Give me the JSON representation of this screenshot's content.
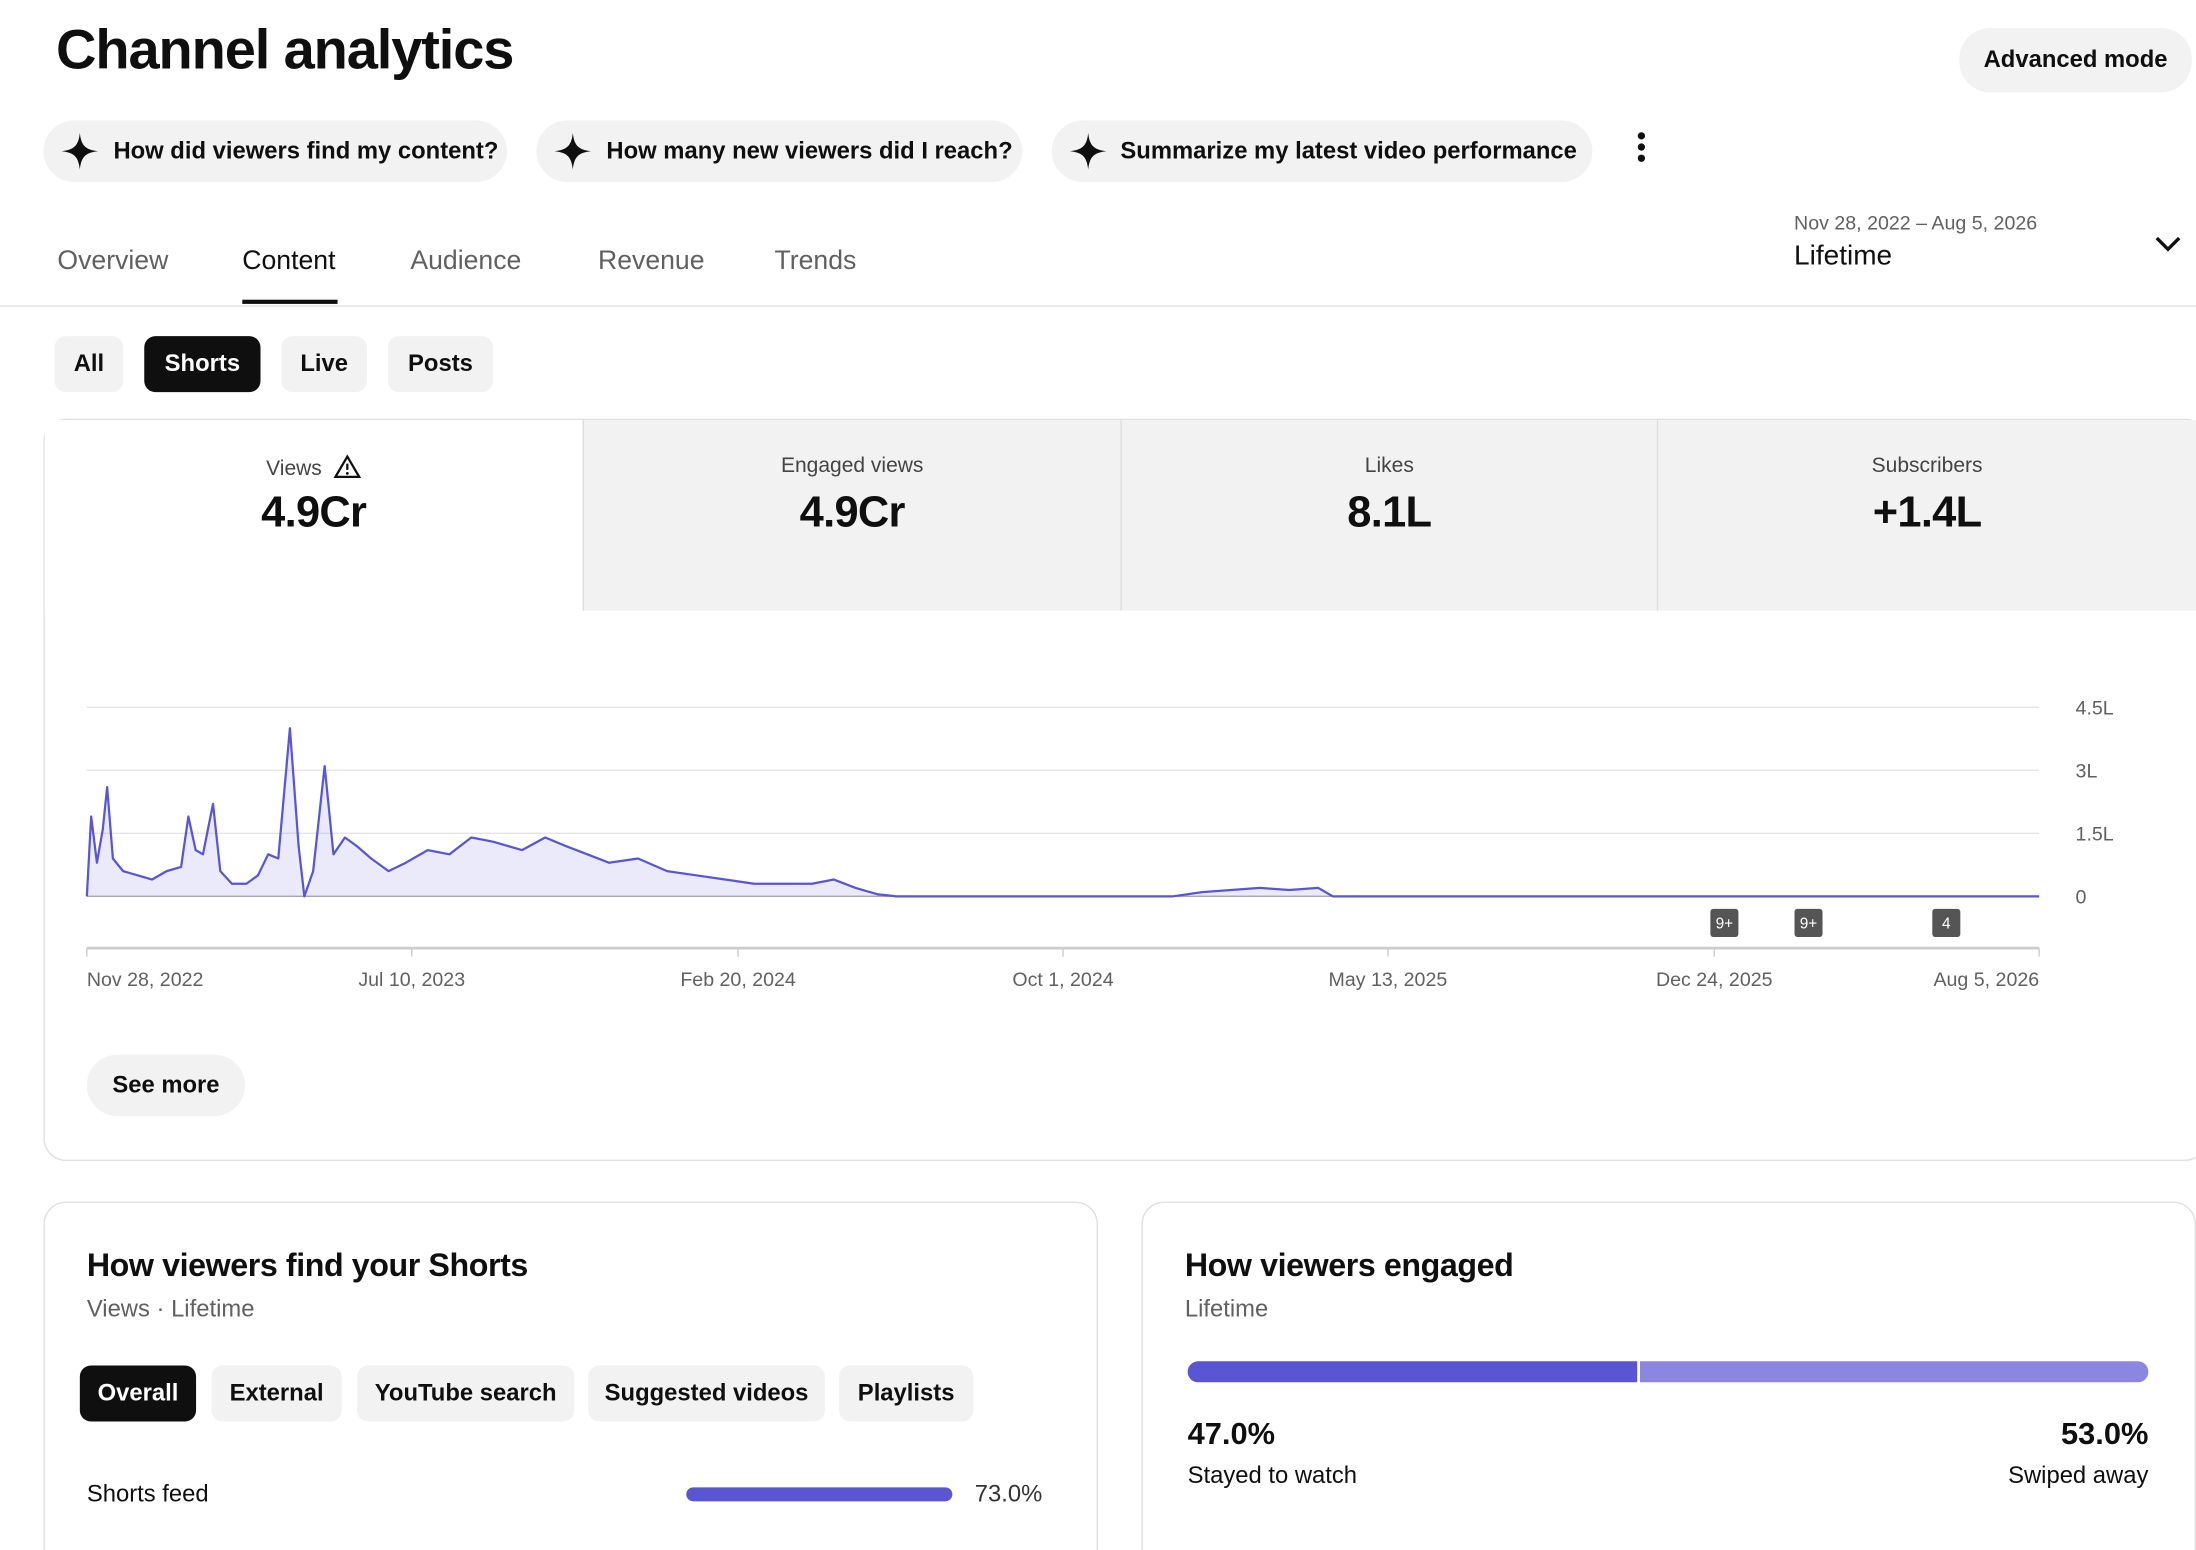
{
  "header": {
    "title": "Channel analytics",
    "advanced": "Advanced mode"
  },
  "prompts": [
    "How did viewers find my content?",
    "How many new viewers did I reach?",
    "Summarize my latest video performance"
  ],
  "tabs": [
    "Overview",
    "Content",
    "Audience",
    "Revenue",
    "Trends"
  ],
  "date_range": {
    "range": "Nov 28, 2022 – Aug 5, 2026",
    "label": "Lifetime"
  },
  "filters": [
    "All",
    "Shorts",
    "Live",
    "Posts"
  ],
  "metrics": [
    {
      "label": "Views",
      "value": "4.9Cr"
    },
    {
      "label": "Engaged views",
      "value": "4.9Cr"
    },
    {
      "label": "Likes",
      "value": "8.1L"
    },
    {
      "label": "Subscribers",
      "value": "+1.4L"
    }
  ],
  "chart_data": {
    "type": "line",
    "x": [
      "2022-11-28",
      "2022-12-01",
      "2022-12-05",
      "2022-12-09",
      "2022-12-12",
      "2022-12-16",
      "2022-12-23",
      "2023-01-02",
      "2023-01-12",
      "2023-01-22",
      "2023-02-01",
      "2023-02-06",
      "2023-02-11",
      "2023-02-16",
      "2023-02-23",
      "2023-02-28",
      "2023-03-08",
      "2023-03-18",
      "2023-03-26",
      "2023-04-02",
      "2023-04-09",
      "2023-04-17",
      "2023-04-23",
      "2023-04-27",
      "2023-05-03",
      "2023-05-11",
      "2023-05-17",
      "2023-05-25",
      "2023-06-02",
      "2023-06-12",
      "2023-06-24",
      "2023-07-06",
      "2023-07-21",
      "2023-08-05",
      "2023-08-20",
      "2023-09-04",
      "2023-09-24",
      "2023-10-10",
      "2023-10-24",
      "2023-11-08",
      "2023-11-23",
      "2023-12-13",
      "2024-01-02",
      "2024-01-22",
      "2024-02-11",
      "2024-03-02",
      "2024-03-22",
      "2024-04-11",
      "2024-04-26",
      "2024-05-11",
      "2024-05-26",
      "2024-06-08",
      "2024-12-16",
      "2025-01-05",
      "2025-01-25",
      "2025-02-14",
      "2025-03-06",
      "2025-03-26",
      "2025-04-05",
      "2026-08-05"
    ],
    "series": [
      {
        "name": "Views",
        "color": "#5a55d2",
        "values": [
          0,
          1.9,
          0.8,
          1.6,
          2.6,
          0.9,
          0.6,
          0.5,
          0.4,
          0.6,
          0.7,
          1.9,
          1.1,
          1.0,
          2.2,
          0.6,
          0.3,
          0.3,
          0.5,
          1.0,
          0.9,
          4.0,
          1.2,
          0,
          0.6,
          3.1,
          1.0,
          1.4,
          1.2,
          0.9,
          0.6,
          0.8,
          1.1,
          1.0,
          1.4,
          1.3,
          1.1,
          1.4,
          1.2,
          1.0,
          0.8,
          0.9,
          0.6,
          0.5,
          0.4,
          0.3,
          0.3,
          0.3,
          0.4,
          0.2,
          0.05,
          0,
          0,
          0.1,
          0.15,
          0.2,
          0.15,
          0.2,
          0,
          0
        ]
      }
    ],
    "xlim": [
      "2022-11-28",
      "2026-08-05"
    ],
    "xticks": [
      "Nov 28, 2022",
      "Jul 10, 2023",
      "Feb 20, 2024",
      "Oct 1, 2024",
      "May 13, 2025",
      "Dec 24, 2025",
      "Aug 5, 2026"
    ],
    "ylim": [
      0,
      4.5
    ],
    "yticks": [
      0,
      {
        "value": 1.5,
        "label": "1.5L"
      },
      {
        "value": 3,
        "label": "3L"
      },
      {
        "value": 4.5,
        "label": "4.5L"
      }
    ],
    "grid": true,
    "events": [
      {
        "x": "2025-12-31",
        "label": "9+"
      },
      {
        "x": "2026-02-27",
        "label": "9+"
      },
      {
        "x": "2026-06-02",
        "label": "4"
      }
    ]
  },
  "see_more": "See more",
  "traffic": {
    "title": "How viewers find your Shorts",
    "subtitle": "Views · Lifetime",
    "filters": [
      "Overall",
      "External",
      "YouTube search",
      "Suggested videos",
      "Playlists"
    ],
    "rows": [
      {
        "label": "Shorts feed",
        "value": 73.0,
        "value_label": "73.0%"
      }
    ]
  },
  "engagement": {
    "title": "How viewers engaged",
    "subtitle": "Lifetime",
    "stayed": {
      "value": 47.0,
      "value_label": "47.0%",
      "label": "Stayed to watch",
      "color": "#5a55d2"
    },
    "swiped": {
      "value": 53.0,
      "value_label": "53.0%",
      "label": "Swiped away",
      "color": "#8b86e0"
    }
  }
}
